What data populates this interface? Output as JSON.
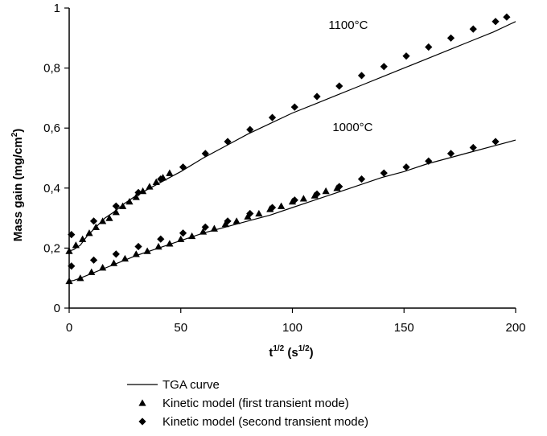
{
  "chart_data": {
    "type": "scatter",
    "title": "",
    "xlabel": {
      "base": "t",
      "base_sup": "1/2",
      "unit_open": " (s",
      "unit_sup": "1/2",
      "unit_close": ")"
    },
    "ylabel": {
      "base": "Mass gain (mg/cm",
      "sup": "2",
      "close": ")"
    },
    "xlim": [
      0,
      200
    ],
    "ylim": [
      0,
      1
    ],
    "xticks": [
      0,
      50,
      100,
      150,
      200
    ],
    "xtick_labels": [
      "0",
      "50",
      "100",
      "150",
      "200"
    ],
    "yticks": [
      0,
      0.2,
      0.4,
      0.6,
      0.8,
      1
    ],
    "ytick_labels": [
      "0",
      "0,2",
      "0,4",
      "0,6",
      "0,8",
      "1"
    ],
    "grid": false,
    "legend_position": "bottom",
    "annotations": [
      {
        "text": "1100°C",
        "x": 125,
        "y": 0.93
      },
      {
        "text": "1000°C",
        "x": 127,
        "y": 0.59
      }
    ],
    "series": [
      {
        "name": "TGA curve",
        "kind": "line",
        "color": "#000000",
        "group": "1100°C",
        "x": [
          0,
          2,
          5,
          8,
          12,
          16,
          20,
          25,
          30,
          35,
          40,
          45,
          50,
          60,
          70,
          80,
          90,
          100,
          110,
          120,
          130,
          140,
          150,
          160,
          170,
          180,
          190,
          200
        ],
        "y": [
          0.19,
          0.195,
          0.21,
          0.24,
          0.27,
          0.3,
          0.32,
          0.35,
          0.375,
          0.395,
          0.415,
          0.435,
          0.455,
          0.5,
          0.54,
          0.58,
          0.615,
          0.65,
          0.68,
          0.71,
          0.74,
          0.77,
          0.8,
          0.83,
          0.86,
          0.89,
          0.92,
          0.955
        ]
      },
      {
        "name": "TGA curve",
        "kind": "line",
        "color": "#000000",
        "group": "1000°C",
        "x": [
          0,
          2,
          5,
          10,
          15,
          20,
          30,
          40,
          50,
          60,
          70,
          80,
          90,
          100,
          110,
          120,
          130,
          140,
          150,
          160,
          170,
          180,
          190,
          200
        ],
        "y": [
          0.09,
          0.092,
          0.1,
          0.115,
          0.13,
          0.145,
          0.175,
          0.2,
          0.225,
          0.25,
          0.27,
          0.29,
          0.31,
          0.335,
          0.36,
          0.385,
          0.41,
          0.435,
          0.455,
          0.48,
          0.5,
          0.52,
          0.54,
          0.56
        ]
      },
      {
        "name": "Kinetic model (first transient mode)",
        "kind": "marker",
        "marker": "triangle",
        "color": "#000000",
        "group": "1100°C",
        "x": [
          0,
          3,
          6,
          9,
          12,
          15,
          18,
          21,
          24,
          27,
          30,
          33,
          36,
          39,
          42,
          45
        ],
        "y": [
          0.19,
          0.21,
          0.23,
          0.25,
          0.27,
          0.29,
          0.3,
          0.32,
          0.34,
          0.355,
          0.37,
          0.39,
          0.405,
          0.42,
          0.435,
          0.45
        ]
      },
      {
        "name": "Kinetic model (first transient mode)",
        "kind": "marker",
        "marker": "triangle",
        "color": "#000000",
        "group": "1000°C",
        "x": [
          0,
          5,
          10,
          15,
          20,
          25,
          30,
          35,
          40,
          45,
          50,
          55,
          60,
          65,
          70,
          75,
          80,
          85,
          90,
          95,
          100,
          105,
          110,
          115,
          120
        ],
        "y": [
          0.09,
          0.1,
          0.12,
          0.135,
          0.15,
          0.165,
          0.18,
          0.19,
          0.205,
          0.215,
          0.23,
          0.24,
          0.255,
          0.265,
          0.28,
          0.29,
          0.305,
          0.315,
          0.33,
          0.34,
          0.355,
          0.365,
          0.375,
          0.39,
          0.4
        ]
      },
      {
        "name": "Kinetic model (second transient mode)",
        "kind": "marker",
        "marker": "diamond",
        "color": "#000000",
        "group": "1100°C",
        "x": [
          1,
          11,
          21,
          31,
          41,
          51,
          61,
          71,
          81,
          91,
          101,
          111,
          121,
          131,
          141,
          151,
          161,
          171,
          181,
          191,
          196
        ],
        "y": [
          0.245,
          0.29,
          0.34,
          0.385,
          0.43,
          0.47,
          0.515,
          0.555,
          0.595,
          0.635,
          0.67,
          0.705,
          0.74,
          0.775,
          0.805,
          0.84,
          0.87,
          0.9,
          0.93,
          0.955,
          0.97
        ]
      },
      {
        "name": "Kinetic model (second transient mode)",
        "kind": "marker",
        "marker": "diamond",
        "color": "#000000",
        "group": "1000°C",
        "x": [
          1,
          11,
          21,
          31,
          41,
          51,
          61,
          71,
          81,
          91,
          101,
          111,
          121,
          131,
          141,
          151,
          161,
          171,
          181,
          191
        ],
        "y": [
          0.14,
          0.16,
          0.18,
          0.205,
          0.23,
          0.25,
          0.27,
          0.29,
          0.315,
          0.335,
          0.36,
          0.38,
          0.405,
          0.43,
          0.45,
          0.47,
          0.49,
          0.515,
          0.535,
          0.555
        ]
      }
    ],
    "legend": [
      {
        "label": "TGA curve",
        "symbol": "line"
      },
      {
        "label": "Kinetic model (first transient mode)",
        "symbol": "triangle"
      },
      {
        "label": "Kinetic model (second transient mode)",
        "symbol": "diamond"
      }
    ]
  }
}
